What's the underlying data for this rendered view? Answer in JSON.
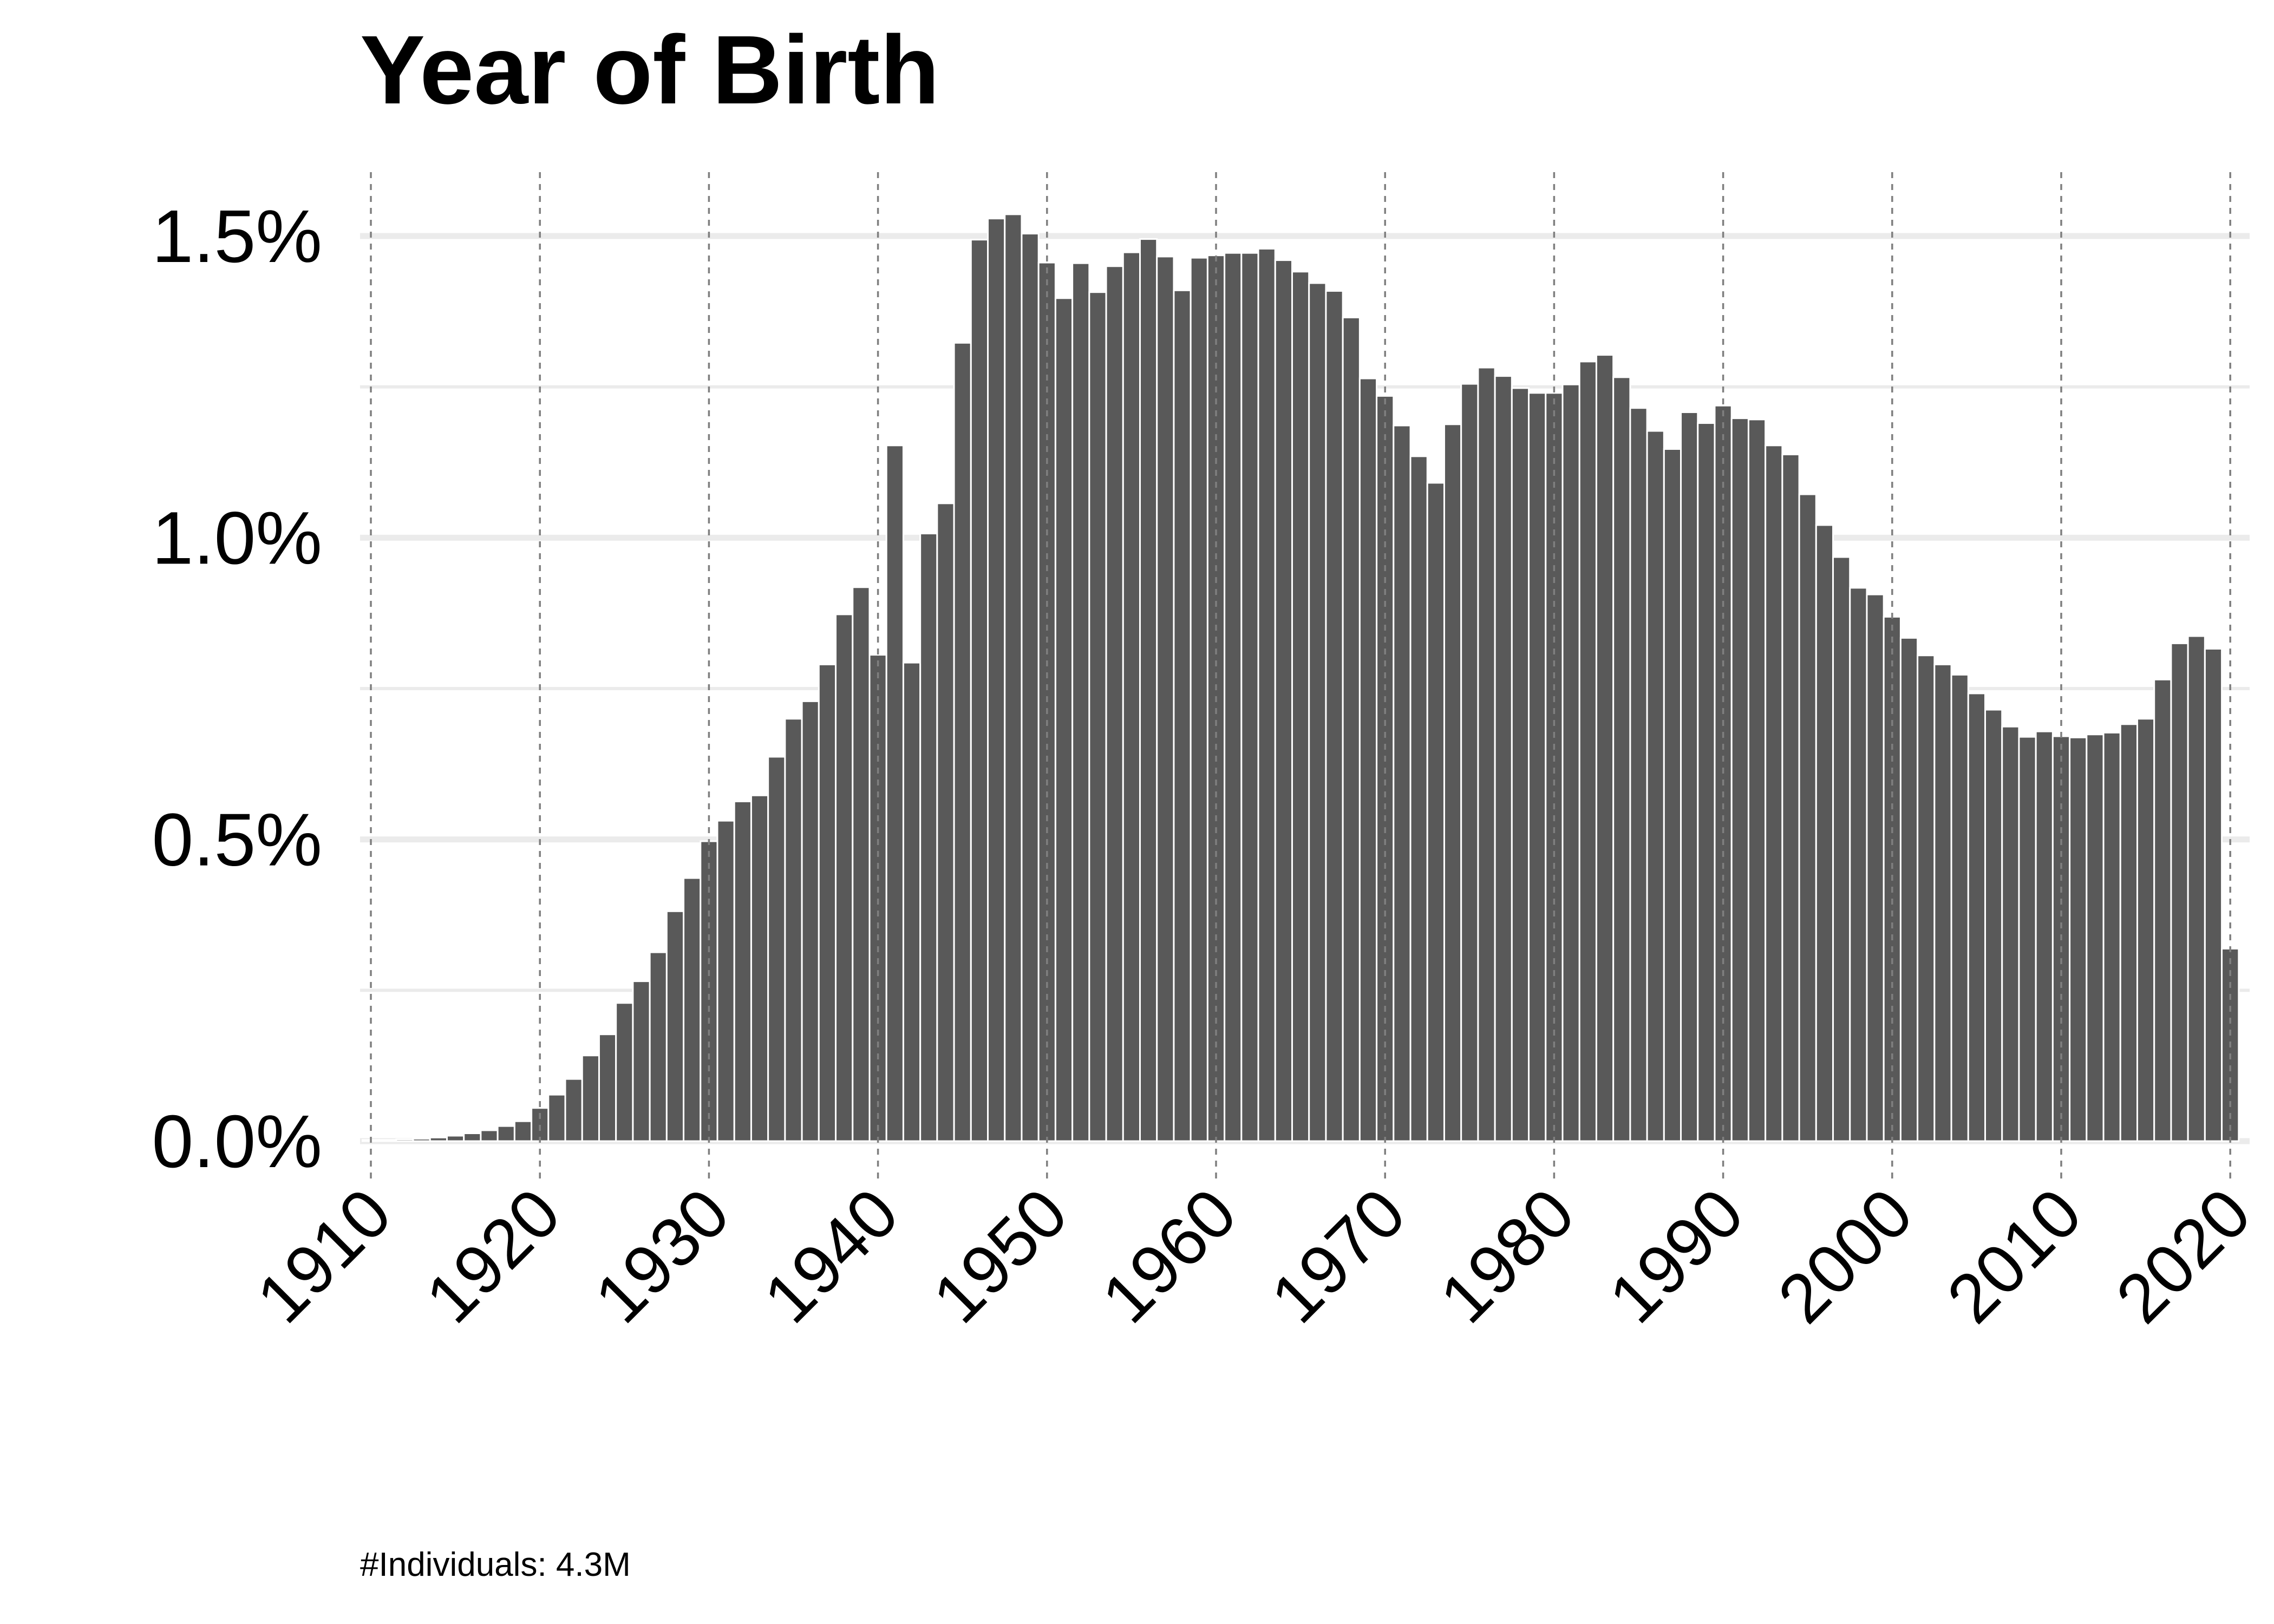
{
  "chart_data": {
    "type": "bar",
    "title": "Year of Birth",
    "caption": "#Individuals: 4.3M",
    "xlabel": "",
    "ylabel": "",
    "xlim": [
      1910,
      2020
    ],
    "ylim": [
      0,
      1.5
    ],
    "y_unit": "%",
    "x_ticks": [
      "1910",
      "1920",
      "1930",
      "1940",
      "1950",
      "1960",
      "1970",
      "1980",
      "1990",
      "2000",
      "2010",
      "2020"
    ],
    "y_ticks": [
      "0.0%",
      "0.5%",
      "1.0%",
      "1.5%"
    ],
    "x": [
      1910,
      1911,
      1912,
      1913,
      1914,
      1915,
      1916,
      1917,
      1918,
      1919,
      1920,
      1921,
      1922,
      1923,
      1924,
      1925,
      1926,
      1927,
      1928,
      1929,
      1930,
      1931,
      1932,
      1933,
      1934,
      1935,
      1936,
      1937,
      1938,
      1939,
      1940,
      1941,
      1942,
      1943,
      1944,
      1945,
      1946,
      1947,
      1948,
      1949,
      1950,
      1951,
      1952,
      1953,
      1954,
      1955,
      1956,
      1957,
      1958,
      1959,
      1960,
      1961,
      1962,
      1963,
      1964,
      1965,
      1966,
      1967,
      1968,
      1969,
      1970,
      1971,
      1972,
      1973,
      1974,
      1975,
      1976,
      1977,
      1978,
      1979,
      1980,
      1981,
      1982,
      1983,
      1984,
      1985,
      1986,
      1987,
      1988,
      1989,
      1990,
      1991,
      1992,
      1993,
      1994,
      1995,
      1996,
      1997,
      1998,
      1999,
      2000,
      2001,
      2002,
      2003,
      2004,
      2005,
      2006,
      2007,
      2008,
      2009,
      2010,
      2011,
      2012,
      2013,
      2014,
      2015,
      2016,
      2017,
      2018,
      2019,
      2020
    ],
    "values": [
      0.002,
      0.002,
      0.003,
      0.004,
      0.006,
      0.009,
      0.013,
      0.018,
      0.025,
      0.033,
      0.055,
      0.077,
      0.103,
      0.142,
      0.177,
      0.229,
      0.265,
      0.313,
      0.381,
      0.436,
      0.497,
      0.531,
      0.563,
      0.573,
      0.637,
      0.7,
      0.729,
      0.79,
      0.873,
      0.918,
      0.806,
      1.153,
      0.793,
      1.007,
      1.057,
      1.323,
      1.494,
      1.529,
      1.536,
      1.504,
      1.456,
      1.397,
      1.455,
      1.407,
      1.45,
      1.473,
      1.495,
      1.466,
      1.41,
      1.464,
      1.468,
      1.472,
      1.472,
      1.479,
      1.46,
      1.441,
      1.422,
      1.409,
      1.365,
      1.264,
      1.235,
      1.186,
      1.135,
      1.091,
      1.188,
      1.255,
      1.282,
      1.268,
      1.248,
      1.24,
      1.24,
      1.254,
      1.292,
      1.303,
      1.266,
      1.215,
      1.177,
      1.147,
      1.208,
      1.19,
      1.219,
      1.198,
      1.196,
      1.153,
      1.138,
      1.072,
      1.021,
      0.968,
      0.917,
      0.906,
      0.869,
      0.834,
      0.805,
      0.79,
      0.773,
      0.742,
      0.715,
      0.687,
      0.67,
      0.679,
      0.671,
      0.669,
      0.674,
      0.677,
      0.691,
      0.7,
      0.765,
      0.825,
      0.837,
      0.816,
      0.319
    ]
  }
}
